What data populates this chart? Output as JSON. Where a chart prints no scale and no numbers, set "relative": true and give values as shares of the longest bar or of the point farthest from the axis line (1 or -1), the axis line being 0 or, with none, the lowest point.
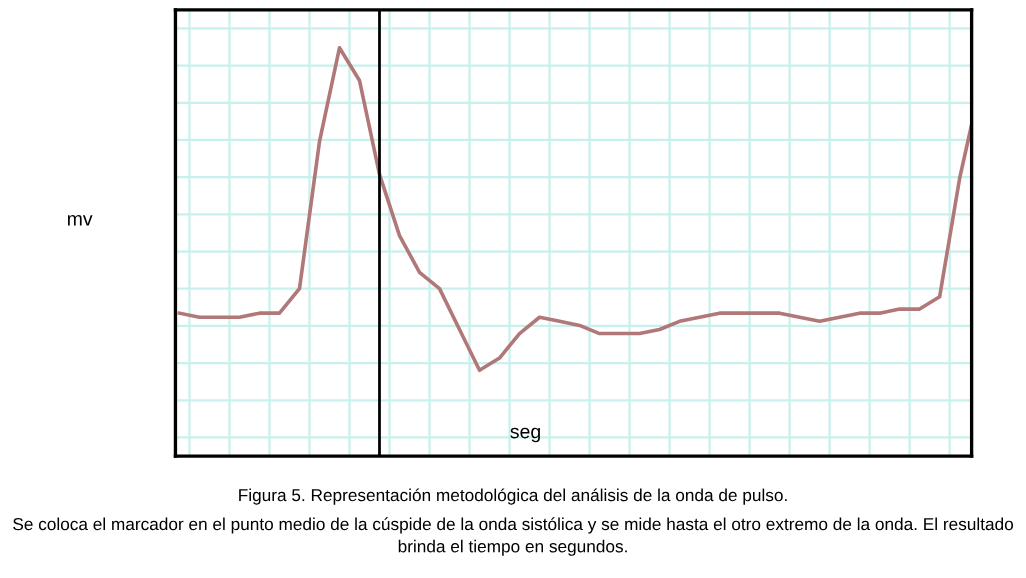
{
  "chart_data": {
    "type": "line",
    "relative": true,
    "xlabel": "seg",
    "ylabel": "mv",
    "categories": [
      null,
      null,
      null,
      null,
      null,
      null,
      null,
      null,
      null,
      null,
      null,
      null,
      null,
      null,
      null,
      null,
      null,
      null,
      null,
      null,
      null,
      null,
      null,
      null,
      null,
      null,
      null,
      null,
      null,
      null,
      null,
      null,
      null,
      null,
      null,
      null,
      null,
      null,
      null,
      null,
      null
    ],
    "series": [
      {
        "color": "#b07878",
        "values": [
          0.35,
          0.34,
          0.34,
          0.34,
          0.35,
          0.35,
          0.41,
          0.77,
          1,
          0.92,
          0.69,
          0.54,
          0.45,
          0.41,
          0.31,
          0.21,
          0.24,
          0.3,
          0.34,
          0.33,
          0.32,
          0.3,
          0.3,
          0.3,
          0.31,
          0.33,
          0.34,
          0.35,
          0.35,
          0.35,
          0.35,
          0.34,
          0.33,
          0.34,
          0.35,
          0.35,
          0.36,
          0.36,
          0.39,
          0.68,
          0.9
        ]
      }
    ],
    "grid": true,
    "legend": false,
    "marker": "none",
    "line_style": "solid",
    "annotations": [
      "Figura 5. Representación metodológica del análisis de la onda de pulso.",
      "Se coloca el marcador en el punto medio de la cúspide de la onda sistólica y se mide hasta el otro extremo de la onda. El resultado brinda el tiempo en segundos."
    ]
  }
}
